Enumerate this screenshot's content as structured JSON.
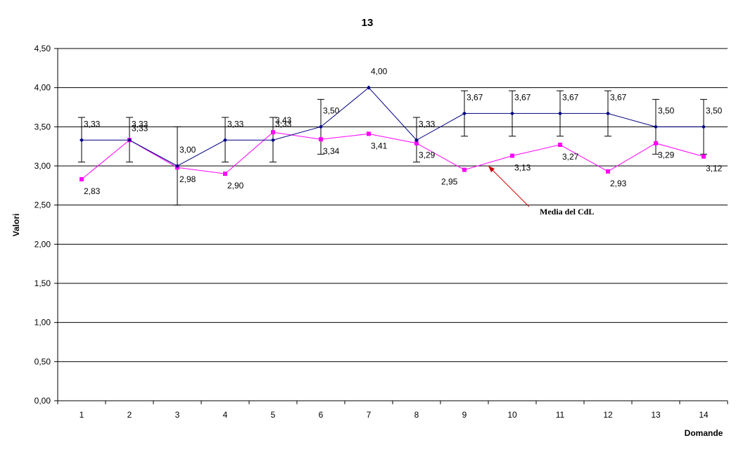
{
  "chart_data": {
    "type": "line",
    "title": "13",
    "xlabel": "Domande",
    "ylabel": "Valori",
    "categories": [
      "1",
      "2",
      "3",
      "4",
      "5",
      "6",
      "7",
      "8",
      "9",
      "10",
      "11",
      "12",
      "13",
      "14"
    ],
    "ylim": [
      0,
      4.5
    ],
    "yticks": [
      0,
      0.5,
      1,
      1.5,
      2,
      2.5,
      3,
      3.5,
      4,
      4.5
    ],
    "ytick_labels": [
      "0,00",
      "0,50",
      "1,00",
      "1,50",
      "2,00",
      "2,50",
      "3,00",
      "3,50",
      "4,00",
      "4,50"
    ],
    "grid": true,
    "series": [
      {
        "name": "",
        "color": "#000080",
        "marker": "diamond",
        "values": [
          3.33,
          3.33,
          3.0,
          3.33,
          3.33,
          3.5,
          4.0,
          3.33,
          3.67,
          3.67,
          3.67,
          3.67,
          3.5,
          3.5
        ],
        "labels": [
          "3,33",
          "3,33",
          "3,00",
          "3,33",
          "3,33",
          "3,50",
          "4,00",
          "3,33",
          "3,67",
          "3,67",
          "3,67",
          "3,67",
          "3,50",
          "3,50"
        ],
        "error_low": [
          3.05,
          3.05,
          2.5,
          3.05,
          3.05,
          3.15,
          null,
          3.05,
          3.38,
          3.38,
          3.38,
          3.38,
          3.15,
          3.15
        ],
        "error_high": [
          3.62,
          3.62,
          3.5,
          3.62,
          3.62,
          3.85,
          null,
          3.62,
          3.96,
          3.96,
          3.96,
          3.96,
          3.85,
          3.85
        ]
      },
      {
        "name": "Media del CdL",
        "color": "#ff00ff",
        "marker": "square",
        "values": [
          2.83,
          3.33,
          2.98,
          2.9,
          3.43,
          3.34,
          3.41,
          3.29,
          2.95,
          3.13,
          3.27,
          2.93,
          3.29,
          3.12
        ],
        "labels": [
          "2,83",
          "3,33",
          "2,98",
          "2,90",
          "3,43",
          "3,34",
          "3,41",
          "3,29",
          "2,95",
          "3,13",
          "3,27",
          "2,93",
          "3,29",
          "3,12"
        ]
      }
    ],
    "annotation": {
      "text": "Media del CdL",
      "arrow_color": "#cc0000",
      "points_to_category": "9.5",
      "points_to_value": 3.0
    }
  }
}
